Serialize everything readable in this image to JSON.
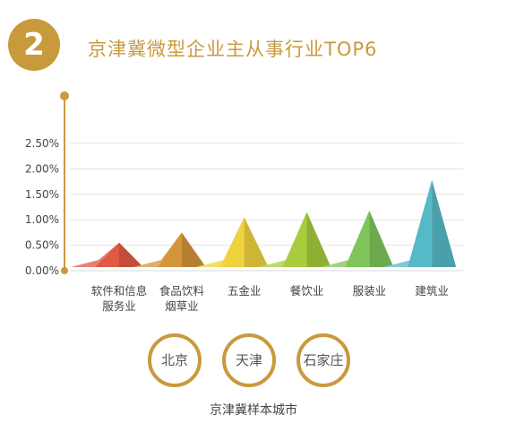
{
  "badge": "2",
  "title": "京津冀微型企业主从事行业TOP6",
  "chart_data": {
    "type": "area",
    "categories": [
      "软件和信息\n服务业",
      "食品饮料\n烟草业",
      "五金业",
      "餐饮业",
      "服装业",
      "建筑业"
    ],
    "values": [
      0.55,
      0.75,
      1.05,
      1.15,
      1.18,
      1.78
    ],
    "unit": "%",
    "y_ticks": [
      "0.00%",
      "0.50%",
      "1.00%",
      "1.50%",
      "2.00%",
      "2.50%"
    ],
    "ylim": [
      0,
      2.5
    ],
    "grid": true,
    "colors": [
      "#e05a43",
      "#d3953a",
      "#f0d23e",
      "#a8cc3e",
      "#7fc55b",
      "#55b9c7"
    ]
  },
  "cities": [
    "北京",
    "天津",
    "石家庄"
  ],
  "caption": "京津冀样本城市"
}
